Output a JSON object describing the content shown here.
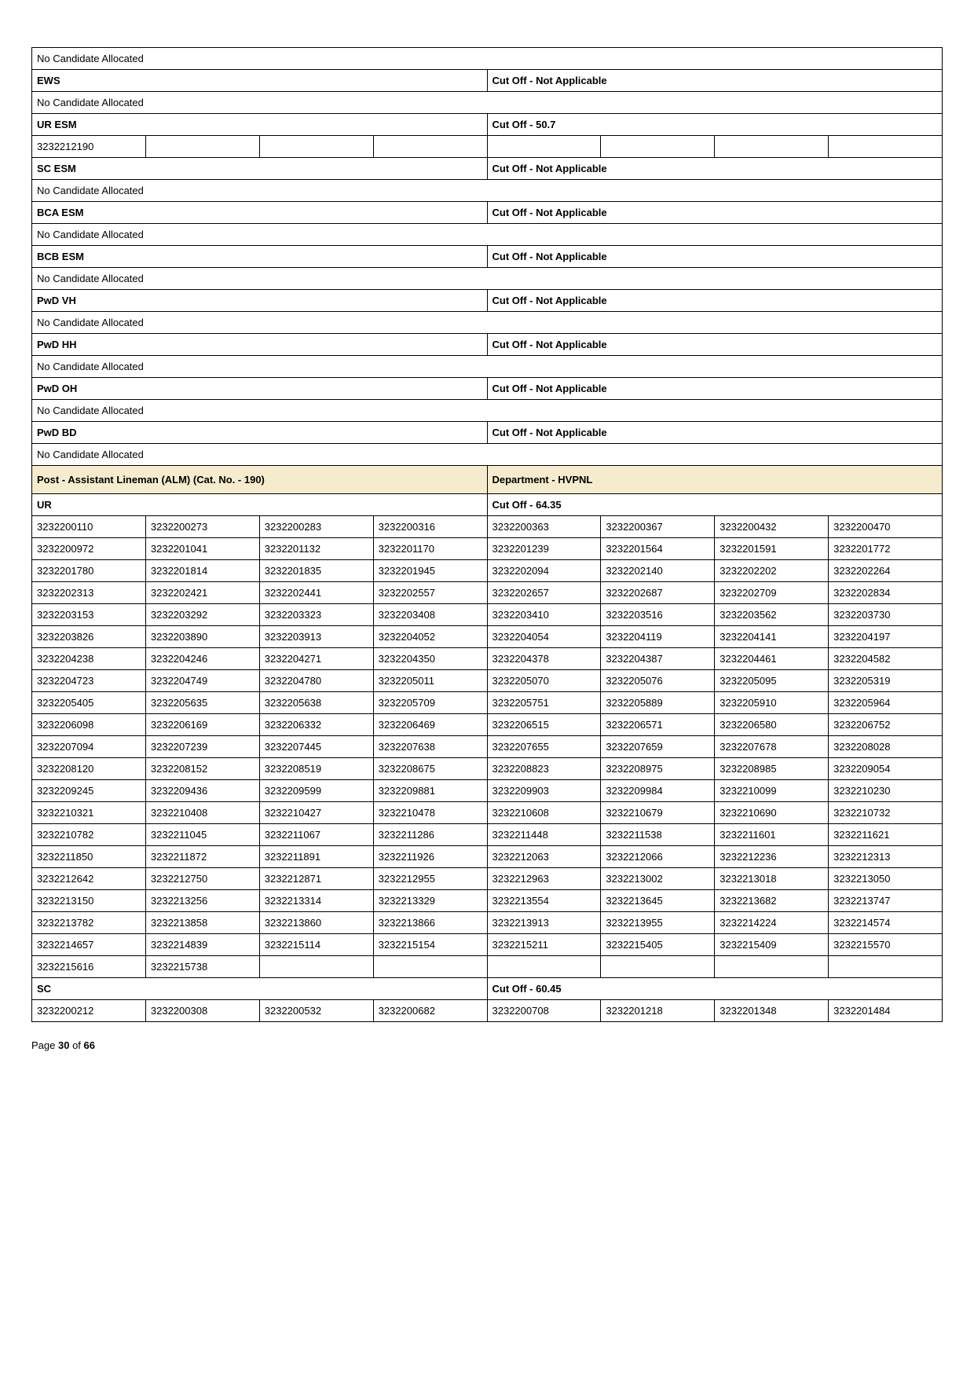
{
  "colors": {
    "border": "#000000",
    "headerBg": "#f5ecce",
    "pageBg": "#ffffff",
    "text": "#000000"
  },
  "sections": [
    {
      "type": "full",
      "text": "No Candidate Allocated",
      "bold": false
    },
    {
      "type": "pair",
      "left": "EWS",
      "right": "Cut Off - Not Applicable",
      "bold": true
    },
    {
      "type": "full",
      "text": "No Candidate Allocated",
      "bold": false
    },
    {
      "type": "pair",
      "left": "UR ESM",
      "right": "Cut Off - 50.7",
      "bold": true
    },
    {
      "type": "row8",
      "cells": [
        "3232212190",
        "",
        "",
        "",
        "",
        "",
        "",
        ""
      ]
    },
    {
      "type": "pair",
      "left": "SC ESM",
      "right": "Cut Off - Not Applicable",
      "bold": true
    },
    {
      "type": "full",
      "text": "No Candidate Allocated",
      "bold": false
    },
    {
      "type": "pair",
      "left": "BCA ESM",
      "right": "Cut Off - Not Applicable",
      "bold": true
    },
    {
      "type": "full",
      "text": "No Candidate Allocated",
      "bold": false
    },
    {
      "type": "pair",
      "left": "BCB ESM",
      "right": "Cut Off - Not Applicable",
      "bold": true
    },
    {
      "type": "full",
      "text": "No Candidate Allocated",
      "bold": false
    },
    {
      "type": "pair",
      "left": "PwD VH",
      "right": "Cut Off - Not Applicable",
      "bold": true
    },
    {
      "type": "full",
      "text": "No Candidate Allocated",
      "bold": false
    },
    {
      "type": "pair",
      "left": "PwD HH",
      "right": "Cut Off - Not Applicable",
      "bold": true
    },
    {
      "type": "full",
      "text": "No Candidate Allocated",
      "bold": false
    },
    {
      "type": "pair",
      "left": "PwD OH",
      "right": "Cut Off - Not Applicable",
      "bold": true
    },
    {
      "type": "full",
      "text": "No Candidate Allocated",
      "bold": false
    },
    {
      "type": "pair",
      "left": "PwD BD",
      "right": "Cut Off - Not Applicable",
      "bold": true
    },
    {
      "type": "full",
      "text": "No Candidate Allocated",
      "bold": false
    },
    {
      "type": "pair-cream",
      "left": "Post - Assistant Lineman (ALM) (Cat. No. - 190)",
      "right": "Department - HVPNL"
    },
    {
      "type": "pair",
      "left": "UR",
      "right": "Cut Off - 64.35",
      "bold": true
    },
    {
      "type": "row8",
      "cells": [
        "3232200110",
        "3232200273",
        "3232200283",
        "3232200316",
        "3232200363",
        "3232200367",
        "3232200432",
        "3232200470"
      ]
    },
    {
      "type": "row8",
      "cells": [
        "3232200972",
        "3232201041",
        "3232201132",
        "3232201170",
        "3232201239",
        "3232201564",
        "3232201591",
        "3232201772"
      ]
    },
    {
      "type": "row8",
      "cells": [
        "3232201780",
        "3232201814",
        "3232201835",
        "3232201945",
        "3232202094",
        "3232202140",
        "3232202202",
        "3232202264"
      ]
    },
    {
      "type": "row8",
      "cells": [
        "3232202313",
        "3232202421",
        "3232202441",
        "3232202557",
        "3232202657",
        "3232202687",
        "3232202709",
        "3232202834"
      ]
    },
    {
      "type": "row8",
      "cells": [
        "3232203153",
        "3232203292",
        "3232203323",
        "3232203408",
        "3232203410",
        "3232203516",
        "3232203562",
        "3232203730"
      ]
    },
    {
      "type": "row8",
      "cells": [
        "3232203826",
        "3232203890",
        "3232203913",
        "3232204052",
        "3232204054",
        "3232204119",
        "3232204141",
        "3232204197"
      ]
    },
    {
      "type": "row8",
      "cells": [
        "3232204238",
        "3232204246",
        "3232204271",
        "3232204350",
        "3232204378",
        "3232204387",
        "3232204461",
        "3232204582"
      ]
    },
    {
      "type": "row8",
      "cells": [
        "3232204723",
        "3232204749",
        "3232204780",
        "3232205011",
        "3232205070",
        "3232205076",
        "3232205095",
        "3232205319"
      ]
    },
    {
      "type": "row8",
      "cells": [
        "3232205405",
        "3232205635",
        "3232205638",
        "3232205709",
        "3232205751",
        "3232205889",
        "3232205910",
        "3232205964"
      ]
    },
    {
      "type": "row8",
      "cells": [
        "3232206098",
        "3232206169",
        "3232206332",
        "3232206469",
        "3232206515",
        "3232206571",
        "3232206580",
        "3232206752"
      ]
    },
    {
      "type": "row8",
      "cells": [
        "3232207094",
        "3232207239",
        "3232207445",
        "3232207638",
        "3232207655",
        "3232207659",
        "3232207678",
        "3232208028"
      ]
    },
    {
      "type": "row8",
      "cells": [
        "3232208120",
        "3232208152",
        "3232208519",
        "3232208675",
        "3232208823",
        "3232208975",
        "3232208985",
        "3232209054"
      ]
    },
    {
      "type": "row8",
      "cells": [
        "3232209245",
        "3232209436",
        "3232209599",
        "3232209881",
        "3232209903",
        "3232209984",
        "3232210099",
        "3232210230"
      ]
    },
    {
      "type": "row8",
      "cells": [
        "3232210321",
        "3232210408",
        "3232210427",
        "3232210478",
        "3232210608",
        "3232210679",
        "3232210690",
        "3232210732"
      ]
    },
    {
      "type": "row8",
      "cells": [
        "3232210782",
        "3232211045",
        "3232211067",
        "3232211286",
        "3232211448",
        "3232211538",
        "3232211601",
        "3232211621"
      ]
    },
    {
      "type": "row8",
      "cells": [
        "3232211850",
        "3232211872",
        "3232211891",
        "3232211926",
        "3232212063",
        "3232212066",
        "3232212236",
        "3232212313"
      ]
    },
    {
      "type": "row8",
      "cells": [
        "3232212642",
        "3232212750",
        "3232212871",
        "3232212955",
        "3232212963",
        "3232213002",
        "3232213018",
        "3232213050"
      ]
    },
    {
      "type": "row8",
      "cells": [
        "3232213150",
        "3232213256",
        "3232213314",
        "3232213329",
        "3232213554",
        "3232213645",
        "3232213682",
        "3232213747"
      ]
    },
    {
      "type": "row8",
      "cells": [
        "3232213782",
        "3232213858",
        "3232213860",
        "3232213866",
        "3232213913",
        "3232213955",
        "3232214224",
        "3232214574"
      ]
    },
    {
      "type": "row8",
      "cells": [
        "3232214657",
        "3232214839",
        "3232215114",
        "3232215154",
        "3232215211",
        "3232215405",
        "3232215409",
        "3232215570"
      ]
    },
    {
      "type": "row8",
      "cells": [
        "3232215616",
        "3232215738",
        "",
        "",
        "",
        "",
        "",
        ""
      ]
    },
    {
      "type": "pair",
      "left": "SC",
      "right": "Cut Off - 60.45",
      "bold": true
    },
    {
      "type": "row8",
      "cells": [
        "3232200212",
        "3232200308",
        "3232200532",
        "3232200682",
        "3232200708",
        "3232201218",
        "3232201348",
        "3232201484"
      ]
    }
  ],
  "footer": {
    "prefix": "Page ",
    "current": "30",
    "sep": " of ",
    "total": "66"
  }
}
